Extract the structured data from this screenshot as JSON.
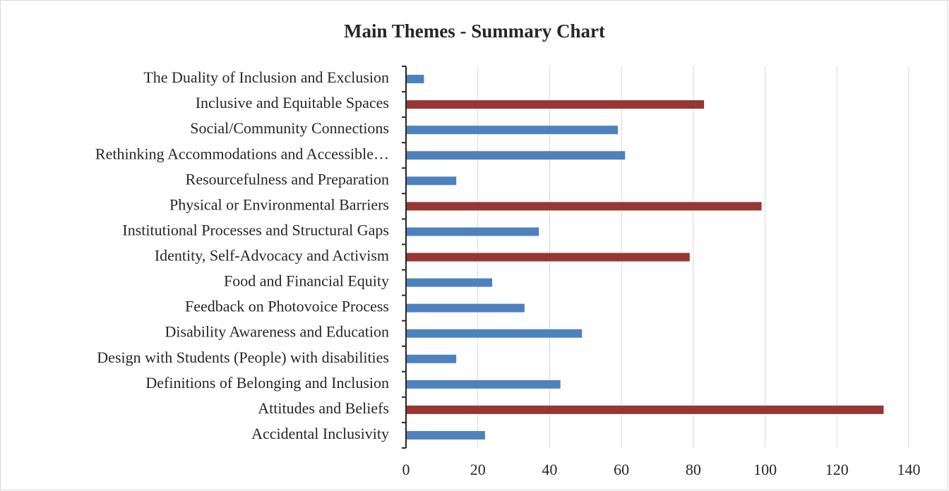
{
  "chart_data": {
    "type": "bar",
    "orientation": "horizontal",
    "title": "Main Themes - Summary Chart",
    "categories": [
      "The Duality of Inclusion and Exclusion",
      "Inclusive and Equitable Spaces",
      "Social/Community Connections",
      "Rethinking Accommodations and Accessible…",
      "Resourcefulness and Preparation",
      "Physical or Environmental Barriers",
      "Institutional Processes and Structural Gaps",
      "Identity, Self-Advocacy and Activism",
      "Food and Financial Equity",
      "Feedback on Photovoice Process",
      "Disability Awareness and Education",
      "Design with Students (People) with disabilities",
      "Definitions of Belonging and Inclusion",
      "Attitudes and Beliefs",
      "Accidental Inclusivity"
    ],
    "values": [
      5,
      83,
      59,
      61,
      14,
      99,
      37,
      79,
      24,
      33,
      49,
      14,
      43,
      133,
      22
    ],
    "colors": [
      "#4f81bd",
      "#953735",
      "#4f81bd",
      "#4f81bd",
      "#4f81bd",
      "#953735",
      "#4f81bd",
      "#953735",
      "#4f81bd",
      "#4f81bd",
      "#4f81bd",
      "#4f81bd",
      "#4f81bd",
      "#953735",
      "#4f81bd"
    ],
    "xlim": [
      0,
      140
    ],
    "xticks": [
      0,
      20,
      40,
      60,
      80,
      100,
      120,
      140
    ],
    "grid": true
  }
}
